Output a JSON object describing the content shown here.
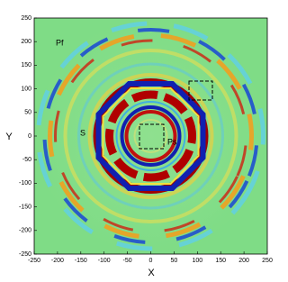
{
  "chart_data": {
    "type": "image",
    "x_label": "X",
    "y_label": "Y",
    "xlim": [
      -250,
      250
    ],
    "ylim": [
      -250,
      250
    ],
    "xticks": [
      -250,
      -200,
      -150,
      -100,
      -50,
      0,
      50,
      100,
      150,
      200,
      250
    ],
    "yticks": [
      -250,
      -200,
      -150,
      -100,
      -50,
      0,
      50,
      100,
      150,
      200,
      250
    ],
    "annotations": [
      "Pf",
      "S",
      "Ps"
    ]
  }
}
